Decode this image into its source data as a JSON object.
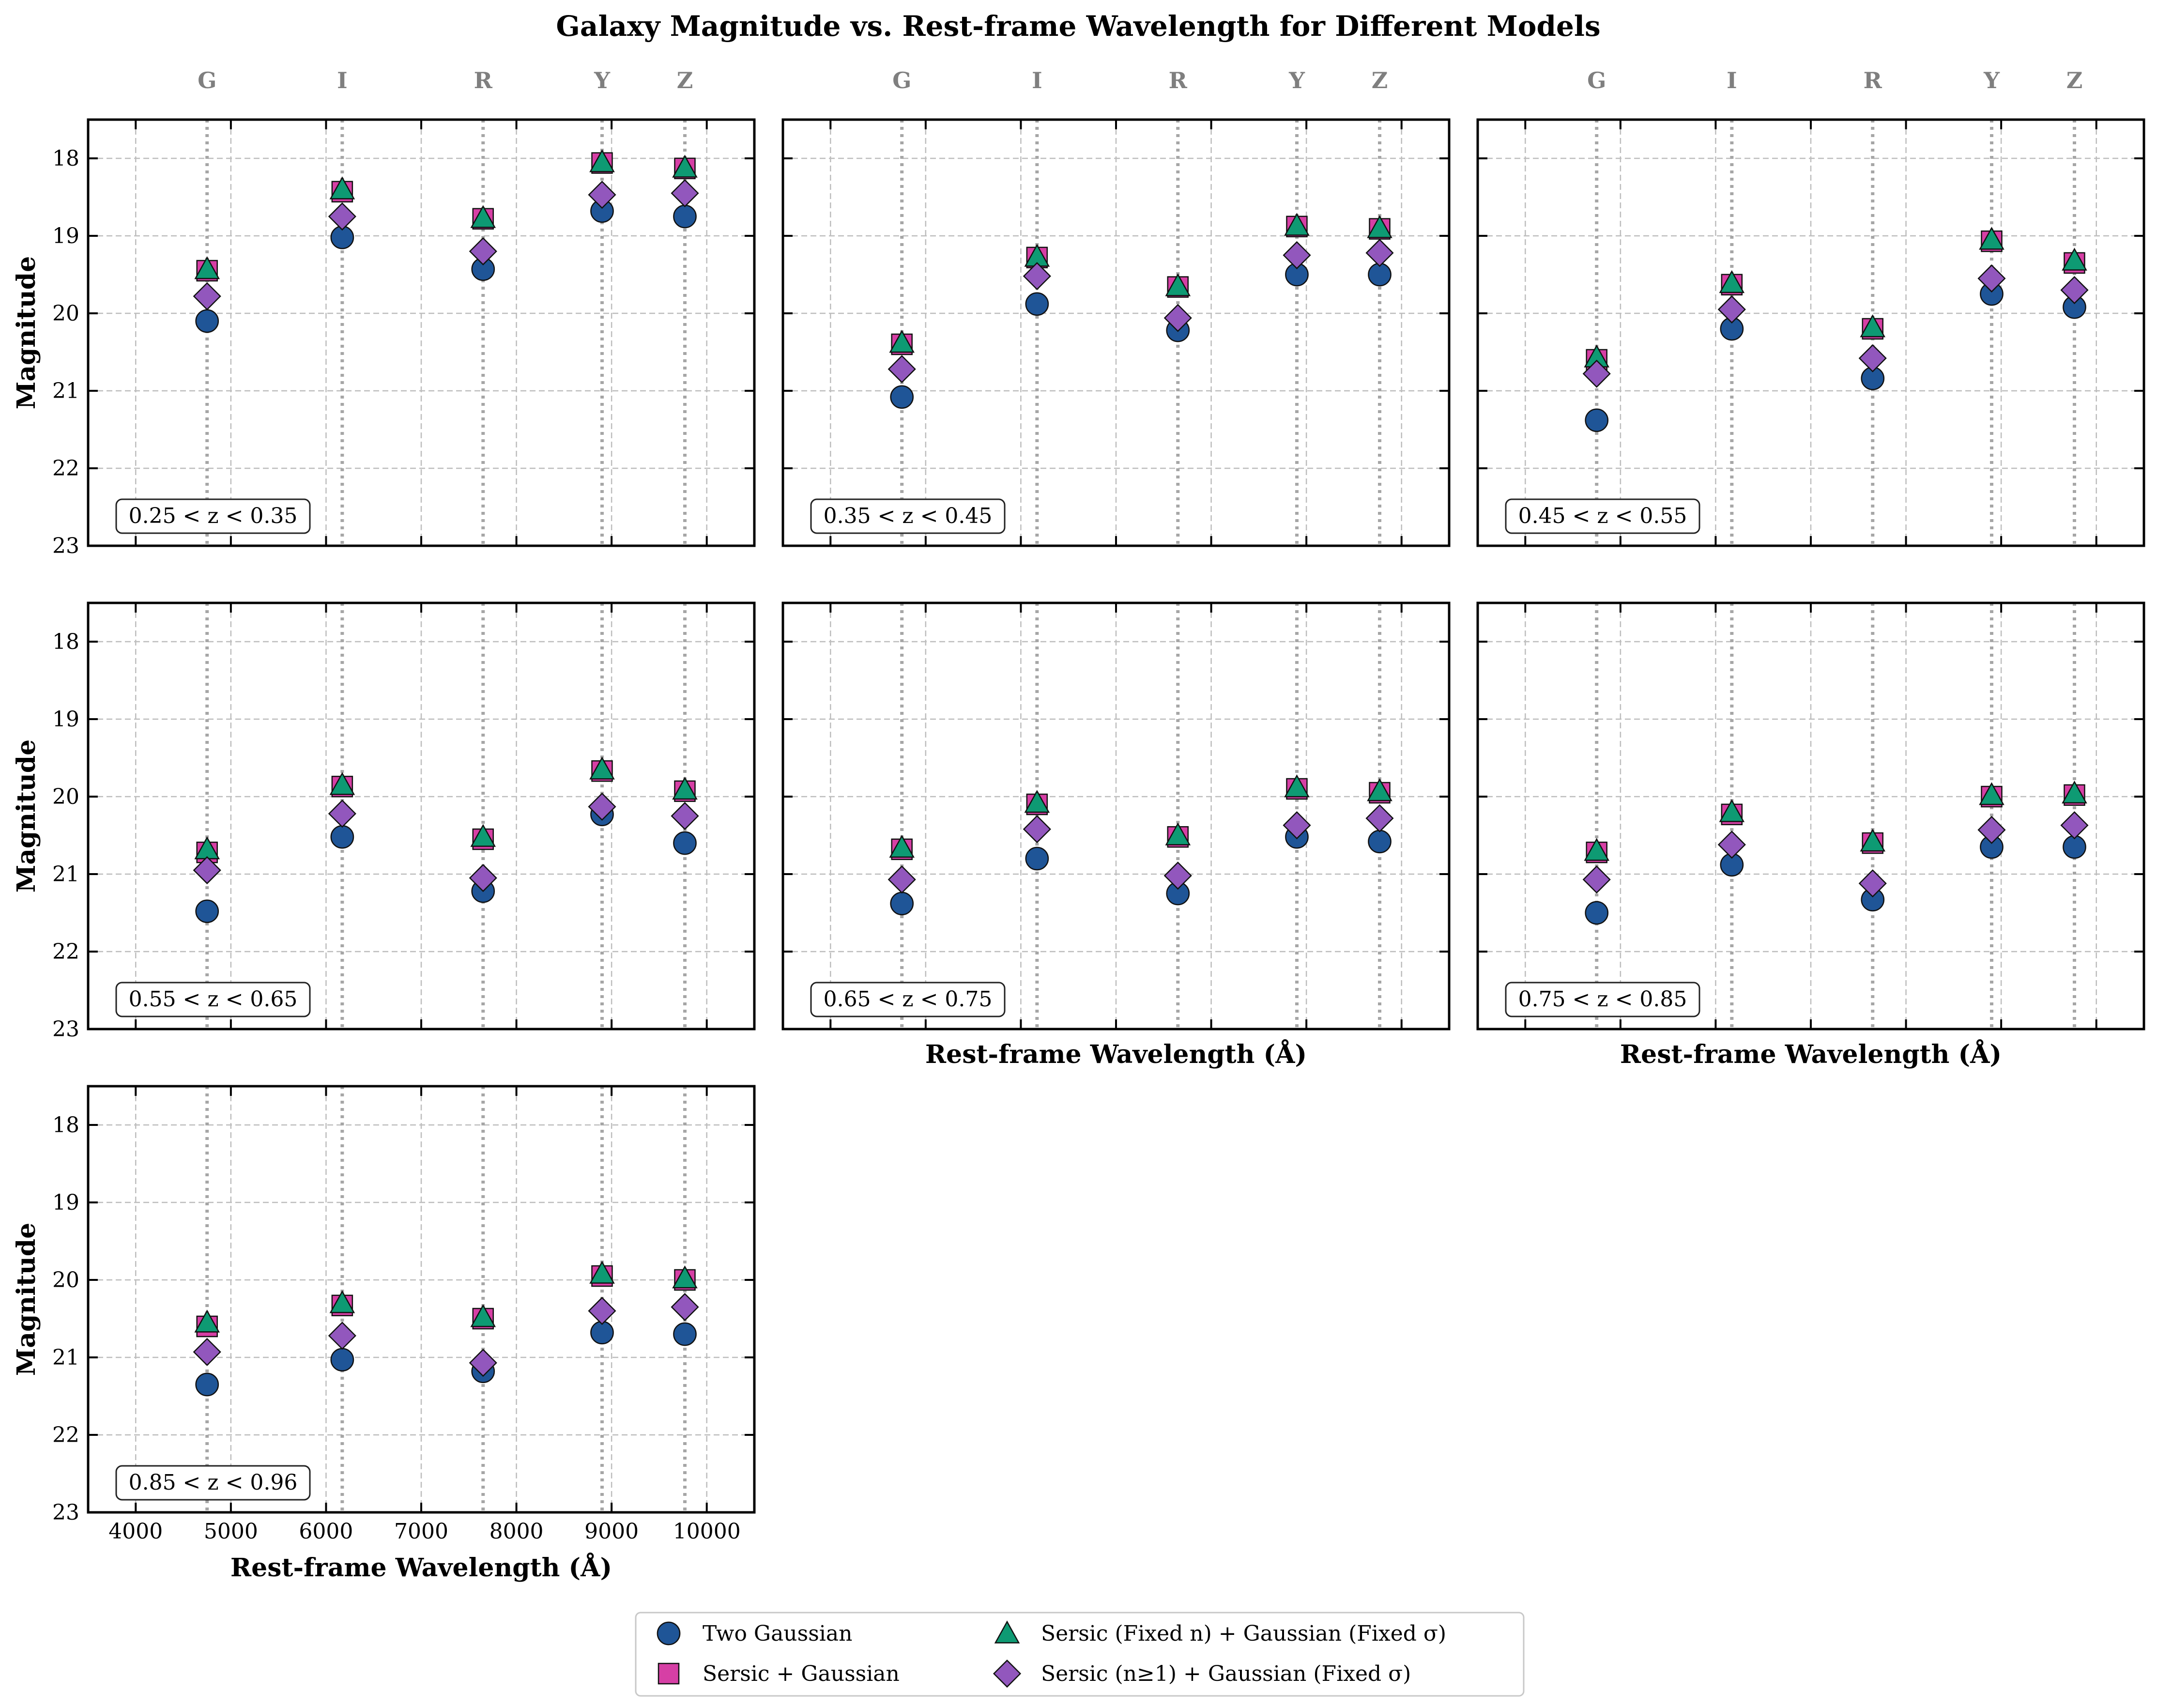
{
  "chart_data": {
    "type": "scatter",
    "title": "Galaxy Magnitude vs. Rest-frame Wavelength for Different Models",
    "xlabel": "Rest-frame Wavelength (Å)",
    "ylabel": "Magnitude",
    "xlim": [
      3500,
      10500
    ],
    "ylim": [
      23,
      17.5
    ],
    "y_inverted": true,
    "xticks": [
      4000,
      5000,
      6000,
      7000,
      8000,
      9000,
      10000
    ],
    "yticks": [
      18,
      19,
      20,
      21,
      22,
      23
    ],
    "grid": true,
    "legend_position": "bottom-center",
    "filters": [
      {
        "name": "G",
        "wavelength": 4750
      },
      {
        "name": "I",
        "wavelength": 6170
      },
      {
        "name": "R",
        "wavelength": 7650
      },
      {
        "name": "Y",
        "wavelength": 8900
      },
      {
        "name": "Z",
        "wavelength": 9770
      }
    ],
    "series": [
      {
        "name": "Two Gaussian",
        "marker": "circle",
        "color": "#1f5597"
      },
      {
        "name": "Sersic + Gaussian",
        "marker": "square",
        "color": "#d63fa5"
      },
      {
        "name": "Sersic (Fixed n) + Gaussian (Fixed σ)",
        "marker": "triangle",
        "color": "#0e9a73"
      },
      {
        "name": "Sersic (n≥1) + Gaussian (Fixed σ)",
        "marker": "diamond",
        "color": "#9257bd"
      }
    ],
    "panels": [
      {
        "label": "0.25 < z < 0.35",
        "values": [
          [
            20.1,
            19.02,
            19.43,
            18.68,
            18.75
          ],
          [
            19.45,
            18.43,
            18.78,
            18.06,
            18.13
          ],
          [
            19.43,
            18.4,
            18.77,
            18.05,
            18.12
          ],
          [
            19.78,
            18.75,
            19.2,
            18.47,
            18.45
          ]
        ]
      },
      {
        "label": "0.35 < z < 0.45",
        "values": [
          [
            21.08,
            19.88,
            20.22,
            19.5,
            19.5
          ],
          [
            20.4,
            19.28,
            19.66,
            18.88,
            18.91
          ],
          [
            20.38,
            19.27,
            19.65,
            18.87,
            18.9
          ],
          [
            20.72,
            19.52,
            20.06,
            19.25,
            19.22
          ]
        ]
      },
      {
        "label": "0.45 < z < 0.55",
        "values": [
          [
            21.38,
            20.2,
            20.84,
            19.75,
            19.92
          ],
          [
            20.6,
            19.63,
            20.2,
            19.07,
            19.35
          ],
          [
            20.57,
            19.61,
            20.18,
            19.05,
            19.32
          ],
          [
            20.78,
            19.95,
            20.58,
            19.55,
            19.7
          ]
        ]
      },
      {
        "label": "0.55 < z < 0.65",
        "values": [
          [
            21.48,
            20.52,
            21.22,
            20.23,
            20.6
          ],
          [
            20.72,
            19.87,
            20.55,
            19.67,
            19.93
          ],
          [
            20.68,
            19.85,
            20.52,
            19.65,
            19.91
          ],
          [
            20.95,
            20.22,
            21.05,
            20.13,
            20.25
          ]
        ]
      },
      {
        "label": "0.65 < z < 0.75",
        "values": [
          [
            21.38,
            20.8,
            21.25,
            20.52,
            20.58
          ],
          [
            20.68,
            20.1,
            20.52,
            19.9,
            19.95
          ],
          [
            20.66,
            20.08,
            20.5,
            19.88,
            19.93
          ],
          [
            21.07,
            20.42,
            21.02,
            20.37,
            20.28
          ]
        ]
      },
      {
        "label": "0.75 < z < 0.85",
        "values": [
          [
            21.5,
            20.88,
            21.33,
            20.65,
            20.65
          ],
          [
            20.72,
            20.23,
            20.6,
            20.0,
            19.98
          ],
          [
            20.7,
            20.2,
            20.58,
            19.98,
            19.96
          ],
          [
            21.07,
            20.62,
            21.12,
            20.43,
            20.37
          ]
        ]
      },
      {
        "label": "0.85 < z < 0.96",
        "values": [
          [
            21.35,
            21.03,
            21.18,
            20.68,
            20.7
          ],
          [
            20.6,
            20.33,
            20.5,
            19.95,
            20.0
          ],
          [
            20.55,
            20.3,
            20.48,
            19.92,
            19.98
          ],
          [
            20.93,
            20.72,
            21.07,
            20.4,
            20.35
          ]
        ]
      }
    ]
  }
}
